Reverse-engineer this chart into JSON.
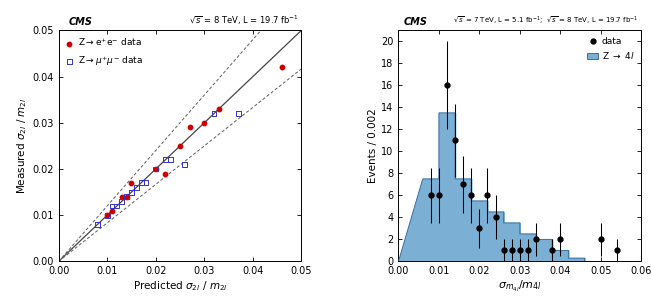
{
  "left": {
    "cms_label": "CMS",
    "energy_label": "$\\sqrt{s}$ = 8 TeV, L = 19.7 fb$^{-1}$",
    "xlabel": "Predicted $\\sigma_{2l}$ / $m_{2l}$",
    "ylabel": "Measured $\\sigma_{2l}$ / $m_{2l}$",
    "xlim": [
      0,
      0.05
    ],
    "ylim": [
      0,
      0.05
    ],
    "diagonal_color": "#444444",
    "dotted_color": "#666666",
    "electron_x": [
      0.01,
      0.011,
      0.013,
      0.014,
      0.015,
      0.02,
      0.022,
      0.025,
      0.027,
      0.03,
      0.033,
      0.046
    ],
    "electron_y": [
      0.01,
      0.011,
      0.014,
      0.014,
      0.017,
      0.02,
      0.019,
      0.025,
      0.029,
      0.03,
      0.033,
      0.042
    ],
    "muon_x": [
      0.008,
      0.01,
      0.011,
      0.012,
      0.013,
      0.014,
      0.015,
      0.016,
      0.017,
      0.018,
      0.02,
      0.022,
      0.023,
      0.026,
      0.032,
      0.037
    ],
    "muon_y": [
      0.008,
      0.01,
      0.012,
      0.012,
      0.013,
      0.014,
      0.015,
      0.016,
      0.017,
      0.017,
      0.02,
      0.022,
      0.022,
      0.021,
      0.032,
      0.032
    ],
    "electron_color": "#cc0000",
    "muon_color": "#3333cc",
    "dotted_factor": 0.2
  },
  "right": {
    "cms_label": "CMS",
    "energy_label7": "$\\sqrt{s}$ = 7 TeV, L = 5.1 fb$^{-1}$",
    "energy_label8": "$\\sqrt{s}$ = 8 TeV, L = 19.7 fb$^{-1}$",
    "xlabel": "$\\sigma_{m_{4l}}/m_{4l}$",
    "ylabel": "Events / 0.002",
    "xlim": [
      0,
      0.06
    ],
    "ylim": [
      0,
      21
    ],
    "hist_bins": [
      0.006,
      0.01,
      0.014,
      0.018,
      0.022,
      0.026,
      0.03,
      0.034,
      0.038,
      0.042
    ],
    "hist_values": [
      7.5,
      13.5,
      7.5,
      5.5,
      4.5,
      3.5,
      2.5,
      2.0,
      1.0,
      0.3
    ],
    "hist_color": "#7bafd4",
    "hist_edgecolor": "#3a6fa0",
    "data_x": [
      0.008,
      0.01,
      0.012,
      0.014,
      0.016,
      0.018,
      0.02,
      0.022,
      0.024,
      0.026,
      0.028,
      0.03,
      0.032,
      0.034,
      0.038,
      0.04,
      0.05,
      0.054
    ],
    "data_y": [
      6,
      6,
      16,
      11,
      7,
      6,
      3,
      6,
      4,
      1,
      1,
      1,
      1,
      2,
      1,
      2,
      2,
      1
    ],
    "data_yerr": [
      2.5,
      2.5,
      4.0,
      3.3,
      2.6,
      2.5,
      1.8,
      2.5,
      2.0,
      1.0,
      1.0,
      1.0,
      1.0,
      1.5,
      1.0,
      1.5,
      1.5,
      1.0
    ]
  }
}
